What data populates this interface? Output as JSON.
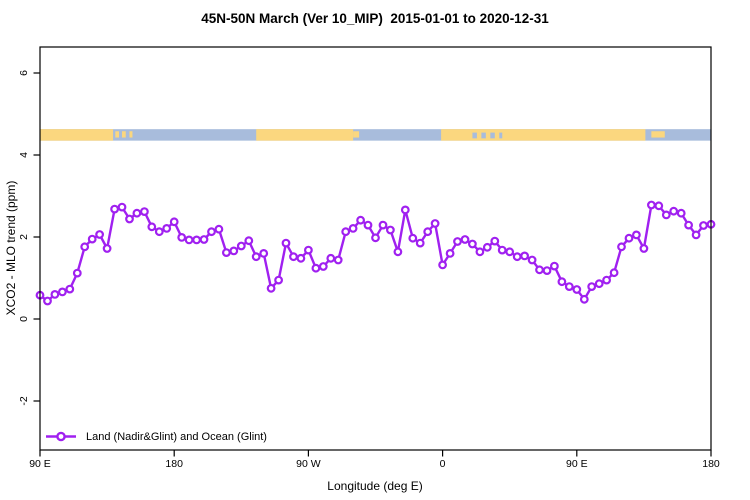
{
  "title": "45N-50N March (Ver 10_MIP)  2015-01-01 to 2020-12-31",
  "colors": {
    "series": "#A020F0",
    "marker_fill": "#ffffff",
    "land": "#FBD77F",
    "ocean": "#A8BCDC",
    "axis": "#000000",
    "background": "#ffffff"
  },
  "legend": [
    {
      "label": "Land (Nadir&Glint) and Ocean (Glint)",
      "marker": "open-circle-on-line"
    }
  ],
  "chart_data": {
    "type": "line",
    "title": "45N-50N March (Ver 10_MIP)  2015-01-01 to 2020-12-31",
    "xlabel": "Longitude (deg E)",
    "ylabel": "XCO2 - MLO trend (ppm)",
    "xlim": [
      90,
      540
    ],
    "ylim": [
      -3.2,
      6.65
    ],
    "grid": false,
    "legend_position": "bottom-left-inside",
    "x_ticks": [
      {
        "lon": 90,
        "label": "90 E"
      },
      {
        "lon": 180,
        "label": "180"
      },
      {
        "lon": 270,
        "label": "90 W"
      },
      {
        "lon": 360,
        "label": "0"
      },
      {
        "lon": 450,
        "label": "90 E"
      },
      {
        "lon": 540,
        "label": "180"
      }
    ],
    "y_ticks": [
      {
        "value": -2,
        "label": "-2"
      },
      {
        "value": 0,
        "label": "0"
      },
      {
        "value": 2,
        "label": "2"
      },
      {
        "value": 4,
        "label": "4"
      },
      {
        "value": 6,
        "label": "6"
      }
    ],
    "series": [
      {
        "name": "Land (Nadir&Glint) and Ocean (Glint)",
        "x": [
          90,
          95,
          100,
          105,
          110,
          115,
          120,
          125,
          130,
          135,
          140,
          145,
          150,
          155,
          160,
          165,
          170,
          175,
          180,
          185,
          190,
          195,
          200,
          205,
          210,
          215,
          220,
          225,
          230,
          235,
          240,
          245,
          250,
          255,
          260,
          265,
          270,
          275,
          280,
          285,
          290,
          295,
          300,
          305,
          310,
          315,
          320,
          325,
          330,
          335,
          340,
          345,
          350,
          355,
          360,
          365,
          370,
          375,
          380,
          385,
          390,
          395,
          400,
          405,
          410,
          415,
          420,
          425,
          430,
          435,
          440,
          445,
          450,
          455,
          460,
          465,
          470,
          475,
          480,
          485,
          490,
          495,
          500,
          505,
          510,
          515,
          520,
          525,
          530,
          535,
          540
        ],
        "values": [
          0.58,
          0.44,
          0.6,
          0.66,
          0.73,
          1.12,
          1.76,
          1.95,
          2.06,
          1.72,
          2.68,
          2.73,
          2.44,
          2.58,
          2.62,
          2.25,
          2.13,
          2.21,
          2.37,
          1.99,
          1.93,
          1.93,
          1.94,
          2.13,
          2.19,
          1.62,
          1.66,
          1.78,
          1.91,
          1.52,
          1.6,
          0.75,
          0.95,
          1.85,
          1.52,
          1.48,
          1.68,
          1.24,
          1.28,
          1.48,
          1.44,
          2.13,
          2.21,
          2.41,
          2.29,
          1.98,
          2.29,
          2.17,
          1.64,
          2.66,
          1.97,
          1.85,
          2.13,
          2.33,
          1.32,
          1.6,
          1.89,
          1.94,
          1.83,
          1.64,
          1.75,
          1.9,
          1.68,
          1.64,
          1.52,
          1.54,
          1.44,
          1.2,
          1.18,
          1.29,
          0.91,
          0.79,
          0.72,
          0.48,
          0.79,
          0.86,
          0.95,
          1.13,
          1.76,
          1.97,
          2.05,
          1.72,
          2.78,
          2.76,
          2.54,
          2.63,
          2.58,
          2.29,
          2.05,
          2.28,
          2.31
        ]
      }
    ],
    "map_band": {
      "description": "world coastline strip at 45N-50N drawn across plot",
      "value_top": 4.63,
      "value_bottom": 4.35,
      "ocean_span": [
        90,
        540
      ],
      "land_segments": [
        [
          90,
          139
        ],
        [
          235,
          300
        ],
        [
          359,
          496
        ]
      ],
      "land_specks": [
        [
          140.5,
          143
        ],
        [
          145,
          147.5
        ],
        [
          150,
          152
        ],
        [
          300,
          304
        ],
        [
          500,
          509
        ]
      ],
      "ocean_specks": [
        [
          380,
          383
        ],
        [
          386,
          389
        ],
        [
          392,
          395
        ],
        [
          398,
          400
        ]
      ]
    }
  }
}
